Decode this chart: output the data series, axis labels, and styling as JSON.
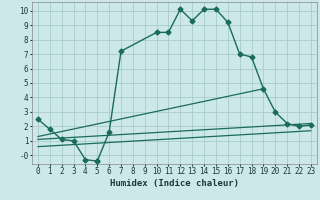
{
  "title": "",
  "xlabel": "Humidex (Indice chaleur)",
  "bg_color": "#cce8e8",
  "grid_color": "#aacccc",
  "line_color": "#1a6b5a",
  "xlim": [
    -0.5,
    23.5
  ],
  "ylim": [
    -0.6,
    10.6
  ],
  "xticks": [
    0,
    1,
    2,
    3,
    4,
    5,
    6,
    7,
    8,
    9,
    10,
    11,
    12,
    13,
    14,
    15,
    16,
    17,
    18,
    19,
    20,
    21,
    22,
    23
  ],
  "yticks": [
    0,
    1,
    2,
    3,
    4,
    5,
    6,
    7,
    8,
    9,
    10
  ],
  "ytick_labels": [
    "-0",
    "1",
    "2",
    "3",
    "4",
    "5",
    "6",
    "7",
    "8",
    "9",
    "10"
  ],
  "curve1_x": [
    0,
    1,
    2,
    3,
    4,
    5,
    5,
    6,
    7,
    10,
    11,
    12,
    13,
    14,
    15,
    16,
    17,
    18,
    19,
    20,
    21,
    22,
    23
  ],
  "curve1_y": [
    2.5,
    1.8,
    1.1,
    1.0,
    -0.3,
    -0.4,
    -0.4,
    1.6,
    7.2,
    8.5,
    8.5,
    10.1,
    9.3,
    10.1,
    10.1,
    9.2,
    7.0,
    6.8,
    4.6,
    3.0,
    2.2,
    2.0,
    2.1
  ],
  "curve2_x": [
    0,
    23
  ],
  "curve2_y": [
    1.1,
    2.2
  ],
  "curve3_x": [
    0,
    23
  ],
  "curve3_y": [
    0.6,
    1.7
  ],
  "curve4_x": [
    0,
    19
  ],
  "curve4_y": [
    1.3,
    4.6
  ]
}
